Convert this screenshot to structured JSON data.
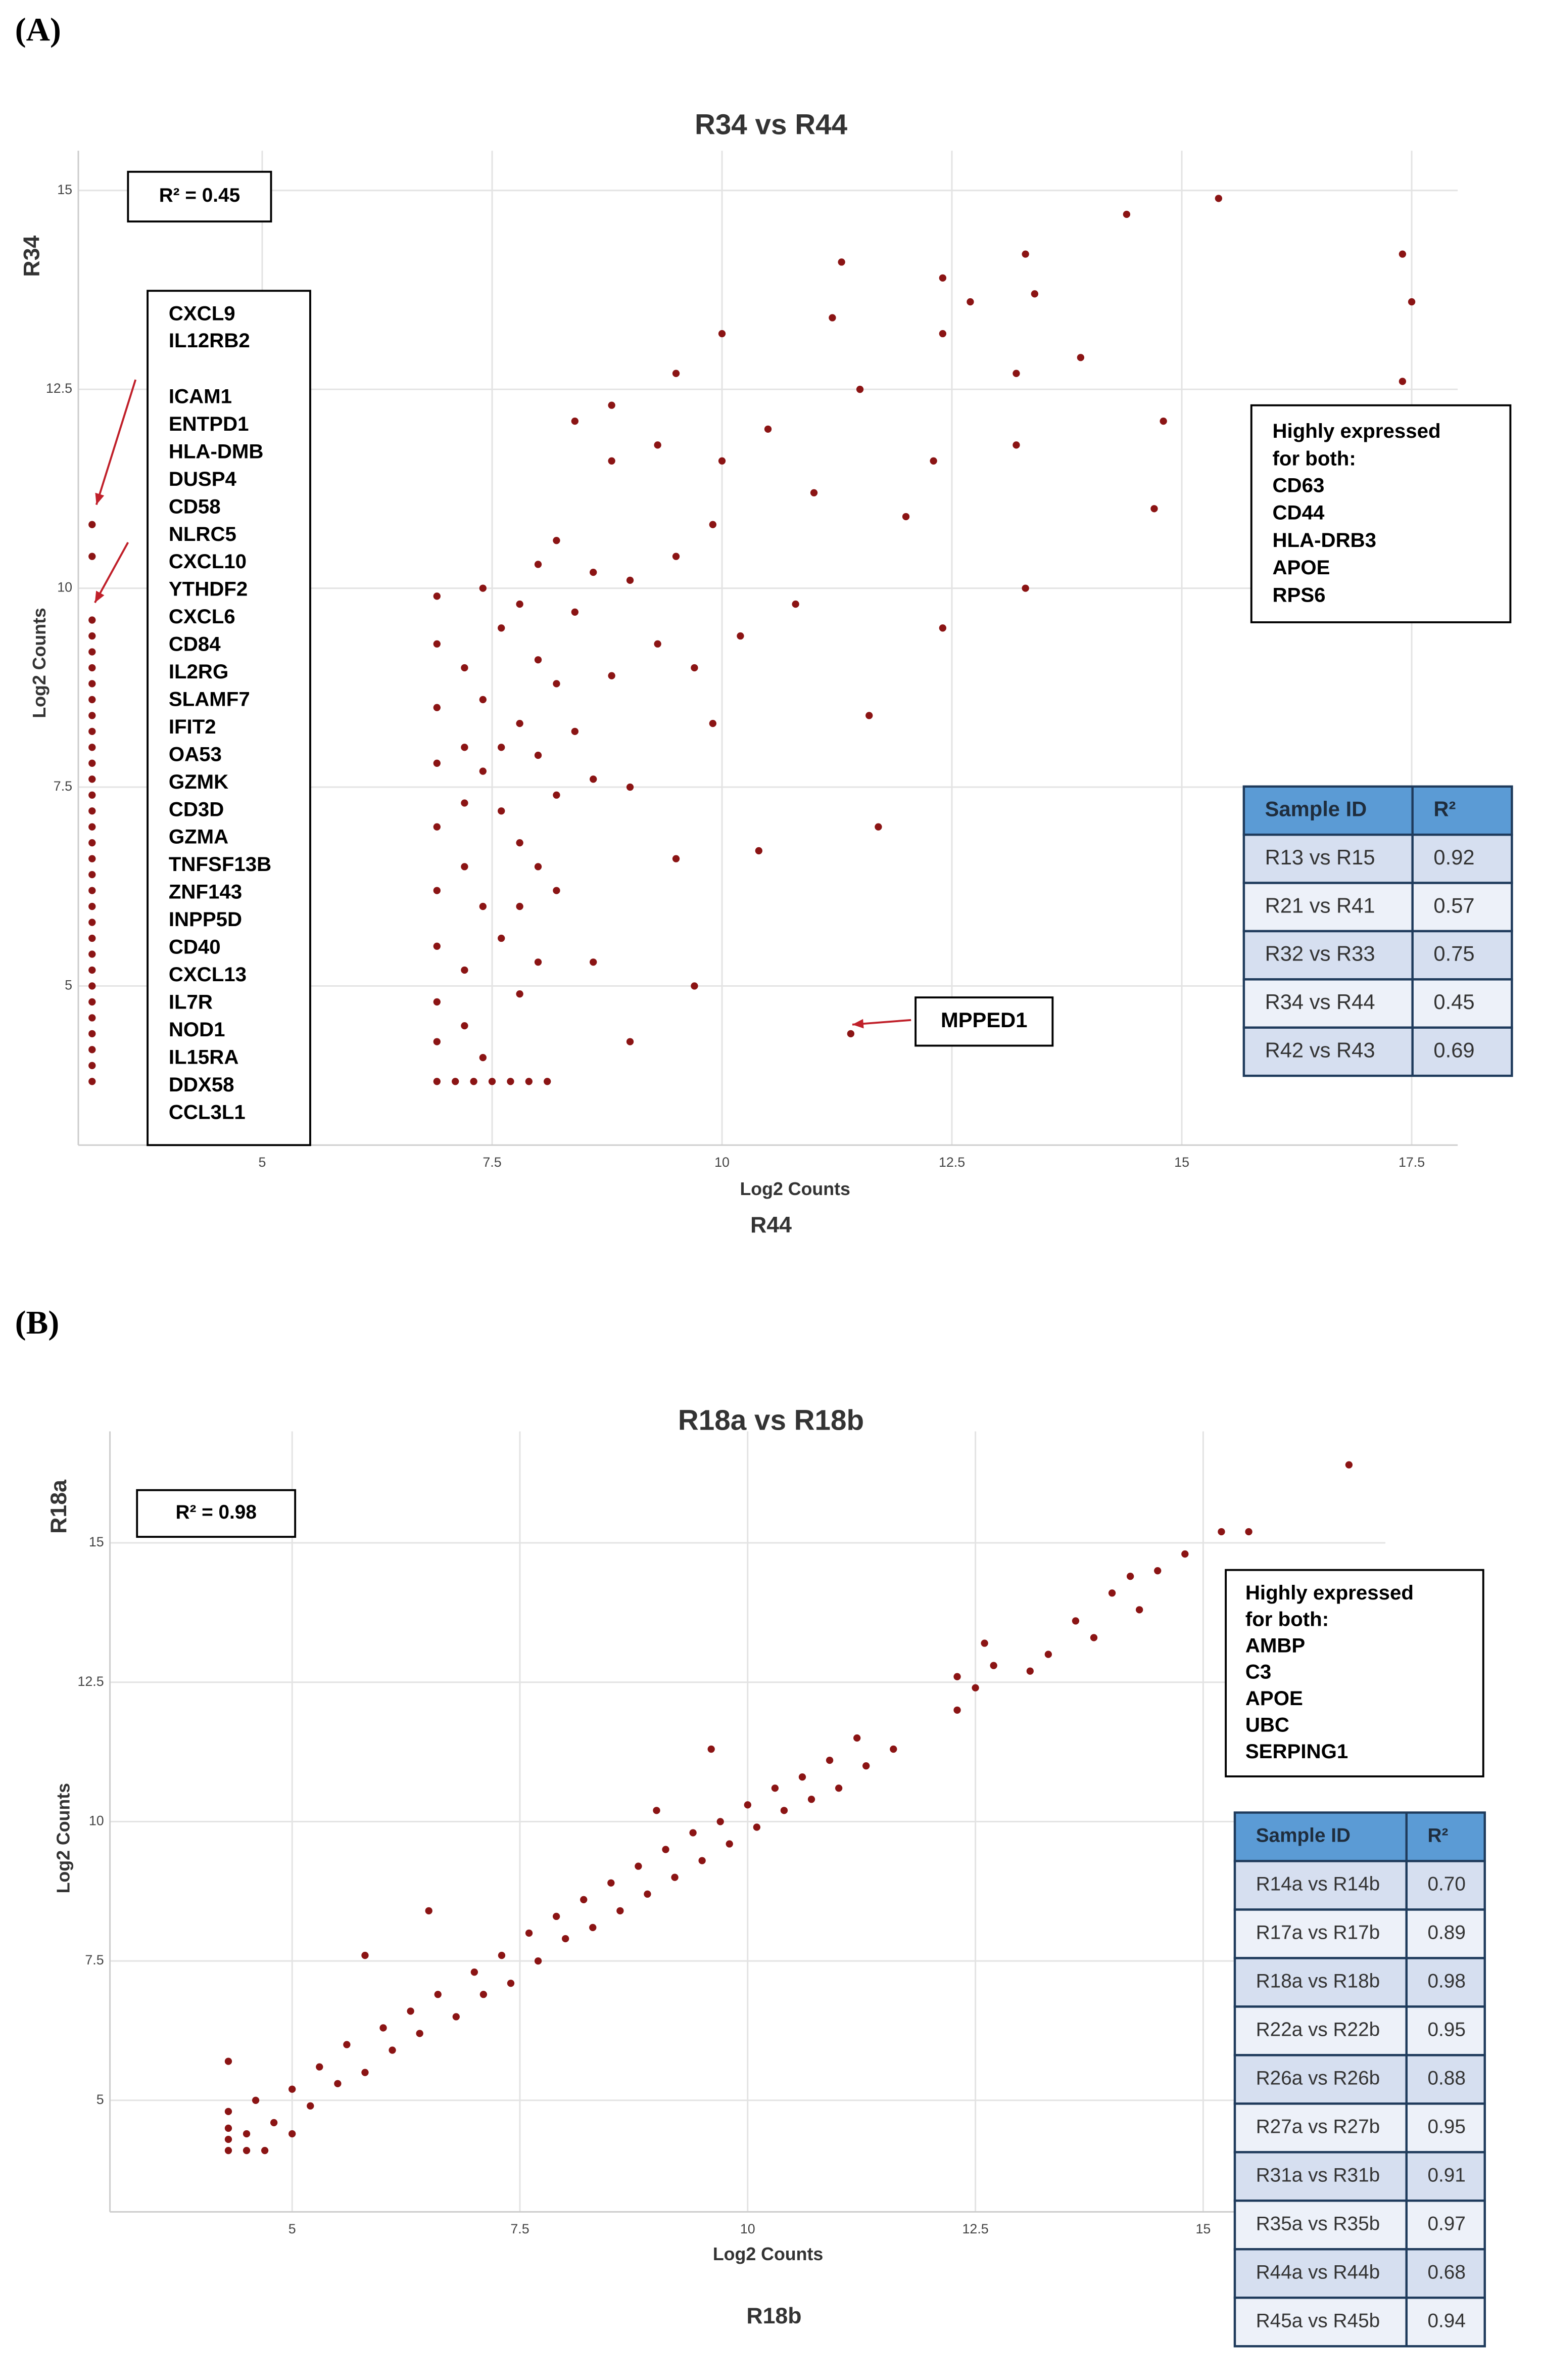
{
  "chart_data": [
    {
      "type": "scatter",
      "panel": "(A)",
      "title": "R34 vs R44",
      "x_label": "Log2 Counts",
      "x_axis_title": "R44",
      "y_label": "Log2 Counts",
      "y_axis_title": "R34",
      "xlim": [
        3,
        18
      ],
      "ylim": [
        3,
        15.5
      ],
      "xticks": [
        5,
        7.5,
        10,
        12.5,
        15,
        17.5
      ],
      "yticks": [
        5,
        7.5,
        10,
        12.5,
        15
      ],
      "grid": true,
      "color": "#8b1414",
      "x": [
        3.15,
        3.15,
        3.15,
        3.15,
        3.15,
        3.15,
        3.15,
        3.15,
        3.15,
        3.15,
        3.15,
        3.15,
        3.15,
        3.15,
        3.15,
        3.15,
        3.15,
        3.15,
        3.15,
        3.15,
        3.15,
        3.15,
        3.15,
        3.15,
        3.15,
        3.15,
        3.15,
        3.15,
        3.15,
        3.15,
        3.15,
        3.15,
        6.9,
        7.1,
        7.3,
        7.5,
        7.7,
        7.9,
        8.1,
        6.9,
        6.9,
        6.9,
        6.9,
        6.9,
        6.9,
        6.9,
        6.9,
        6.9,
        7.2,
        7.2,
        7.2,
        7.2,
        7.2,
        7.2,
        7.4,
        7.4,
        7.4,
        7.4,
        7.4,
        7.6,
        7.6,
        7.6,
        7.6,
        7.8,
        7.8,
        7.8,
        7.8,
        7.8,
        8.0,
        8.0,
        8.0,
        8.0,
        8.0,
        8.2,
        8.2,
        8.2,
        8.2,
        8.4,
        8.4,
        8.4,
        8.6,
        8.6,
        8.6,
        8.8,
        8.8,
        8.8,
        9.0,
        9.0,
        9.0,
        9.3,
        9.3,
        9.5,
        9.5,
        9.5,
        9.7,
        9.7,
        9.9,
        9.9,
        10.0,
        10.0,
        10.2,
        10.4,
        10.5,
        10.8,
        11.0,
        11.2,
        11.3,
        11.4,
        11.5,
        11.6,
        11.7,
        12.0,
        12.3,
        12.4,
        12.4,
        12.4,
        12.7,
        13.2,
        13.2,
        13.3,
        13.4,
        13.3,
        13.9,
        14.4,
        14.7,
        14.8,
        15.4,
        17.4,
        17.5,
        17.4
      ],
      "y": [
        10.8,
        10.4,
        9.6,
        9.4,
        9.2,
        9.0,
        8.8,
        8.6,
        8.4,
        8.2,
        8.0,
        7.8,
        7.6,
        7.4,
        7.2,
        7.0,
        6.8,
        6.6,
        6.4,
        6.2,
        6.0,
        5.8,
        5.6,
        5.4,
        5.2,
        5.0,
        4.8,
        4.6,
        4.4,
        4.2,
        4.0,
        3.8,
        3.8,
        3.8,
        3.8,
        3.8,
        3.8,
        3.8,
        3.8,
        9.9,
        9.3,
        8.5,
        7.8,
        7.0,
        6.2,
        5.5,
        4.8,
        4.3,
        9.0,
        8.0,
        7.3,
        6.5,
        5.2,
        4.5,
        10.0,
        8.6,
        7.7,
        6.0,
        4.1,
        9.5,
        8.0,
        7.2,
        5.6,
        9.8,
        8.3,
        6.8,
        6.0,
        4.9,
        10.3,
        9.1,
        7.9,
        6.5,
        5.3,
        10.6,
        8.8,
        7.4,
        6.2,
        9.7,
        8.2,
        12.1,
        10.2,
        7.6,
        5.3,
        12.3,
        8.9,
        11.6,
        10.1,
        7.5,
        4.3,
        9.3,
        11.8,
        12.7,
        10.4,
        6.6,
        9.0,
        5.0,
        10.8,
        8.3,
        13.2,
        11.6,
        9.4,
        6.7,
        12.0,
        9.8,
        11.2,
        13.4,
        14.1,
        4.4,
        12.5,
        8.4,
        7.0,
        10.9,
        11.6,
        13.2,
        13.9,
        9.5,
        13.6,
        12.7,
        11.8,
        14.2,
        13.7,
        10.0,
        12.9,
        14.7,
        11.0,
        12.1,
        14.9,
        14.2,
        13.6,
        12.6
      ],
      "r2": "R² = 0.45",
      "gene_list": [
        "CXCL9",
        "IL12RB2",
        "ICAM1",
        "ENTPD1",
        "HLA-DMB",
        "DUSP4",
        "CD58",
        "NLRC5",
        "CXCL10",
        "YTHDF2",
        "CXCL6",
        "CD84",
        "IL2RG",
        "SLAMF7",
        "IFIT2",
        "OA53",
        "GZMK",
        "CD3D",
        "GZMA",
        "TNFSF13B",
        "ZNF143",
        "INPP5D",
        "CD40",
        "CXCL13",
        "IL7R",
        "NOD1",
        "IL15RA",
        "DDX58",
        "CCL3L1"
      ],
      "highlight": {
        "title": [
          "Highly expressed",
          "for both:"
        ],
        "genes": [
          "CD63",
          "CD44",
          "HLA-DRB3",
          "APOE",
          "RPS6"
        ]
      },
      "callout": "MPPED1",
      "table": {
        "header": [
          "Sample ID",
          "R²"
        ],
        "rows": [
          [
            "R13 vs R15",
            "0.92"
          ],
          [
            "R21 vs R41",
            "0.57"
          ],
          [
            "R32 vs R33",
            "0.75"
          ],
          [
            "R34 vs R44",
            "0.45"
          ],
          [
            "R42 vs R43",
            "0.69"
          ]
        ]
      }
    },
    {
      "type": "scatter",
      "panel": "(B)",
      "title": "R18a vs R18b",
      "x_label": "Log2 Counts",
      "x_axis_title": "R18b",
      "y_label": "Log2 Counts",
      "y_axis_title": "R18a",
      "xlim": [
        3,
        17
      ],
      "ylim": [
        3,
        17
      ],
      "xticks": [
        5,
        7.5,
        10,
        12.5,
        15
      ],
      "yticks": [
        5,
        7.5,
        10,
        12.5,
        15
      ],
      "grid": true,
      "color": "#8b1414",
      "x": [
        4.3,
        4.3,
        4.3,
        4.3,
        4.3,
        4.5,
        4.7,
        4.5,
        4.6,
        4.8,
        5.0,
        5.0,
        5.2,
        5.3,
        5.5,
        5.6,
        5.8,
        5.8,
        6.0,
        6.1,
        6.3,
        6.4,
        6.5,
        6.6,
        6.8,
        7.0,
        7.1,
        7.3,
        7.4,
        7.6,
        7.7,
        7.9,
        8.0,
        8.2,
        8.3,
        8.5,
        8.6,
        8.8,
        8.9,
        9.0,
        9.1,
        9.2,
        9.4,
        9.5,
        9.6,
        9.7,
        9.8,
        10.0,
        10.1,
        10.3,
        10.4,
        10.6,
        10.7,
        10.9,
        11.0,
        11.2,
        11.3,
        11.6,
        12.3,
        12.3,
        12.5,
        12.7,
        12.6,
        13.1,
        13.3,
        13.6,
        13.8,
        14.0,
        14.2,
        14.3,
        14.5,
        14.8,
        15.2,
        15.5,
        16.6
      ],
      "y": [
        4.1,
        4.3,
        4.5,
        4.8,
        5.7,
        4.1,
        4.1,
        4.4,
        5.0,
        4.6,
        5.2,
        4.4,
        4.9,
        5.6,
        5.3,
        6.0,
        5.5,
        7.6,
        6.3,
        5.9,
        6.6,
        6.2,
        8.4,
        6.9,
        6.5,
        7.3,
        6.9,
        7.6,
        7.1,
        8.0,
        7.5,
        8.3,
        7.9,
        8.6,
        8.1,
        8.9,
        8.4,
        9.2,
        8.7,
        10.2,
        9.5,
        9.0,
        9.8,
        9.3,
        11.3,
        10.0,
        9.6,
        10.3,
        9.9,
        10.6,
        10.2,
        10.8,
        10.4,
        11.1,
        10.6,
        11.5,
        11.0,
        11.3,
        12.0,
        12.6,
        12.4,
        12.8,
        13.2,
        12.7,
        13.0,
        13.6,
        13.3,
        14.1,
        14.4,
        13.8,
        14.5,
        14.8,
        15.2,
        15.2,
        16.4
      ],
      "r2": "R² = 0.98",
      "highlight": {
        "title": [
          "Highly expressed",
          "for both:"
        ],
        "genes": [
          "AMBP",
          "C3",
          "APOE",
          "UBC",
          "SERPING1"
        ]
      },
      "table": {
        "header": [
          "Sample ID",
          "R²"
        ],
        "rows": [
          [
            "R14a vs R14b",
            "0.70"
          ],
          [
            "R17a vs R17b",
            "0.89"
          ],
          [
            "R18a vs R18b",
            "0.98"
          ],
          [
            "R22a vs R22b",
            "0.95"
          ],
          [
            "R26a vs R26b",
            "0.88"
          ],
          [
            "R27a vs R27b",
            "0.95"
          ],
          [
            "R31a vs R31b",
            "0.91"
          ],
          [
            "R35a vs R35b",
            "0.97"
          ],
          [
            "R44a vs R44b",
            "0.68"
          ],
          [
            "R45a vs R45b",
            "0.94"
          ]
        ]
      }
    }
  ]
}
